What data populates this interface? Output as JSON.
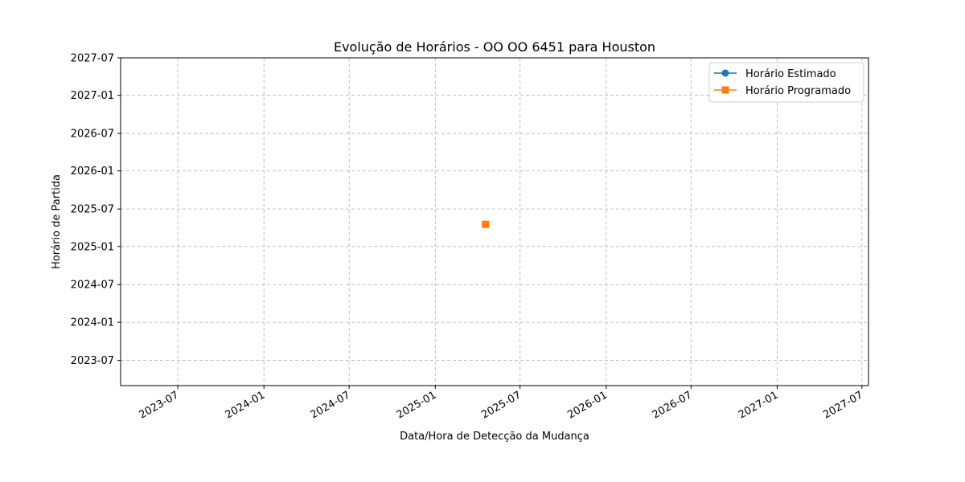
{
  "chart_data": {
    "type": "line",
    "title": "Evolução de Horários - OO OO 6451 para Houston",
    "xlabel": "Data/Hora de Detecção da Mudança",
    "ylabel": "Horário de Partida",
    "x_axis": "date",
    "y_axis": "date",
    "xlim": [
      "2023-03-01",
      "2027-07-15"
    ],
    "ylim": [
      "2023-03-01",
      "2027-07-01"
    ],
    "x_ticks": [
      "2023-07",
      "2024-01",
      "2024-07",
      "2025-01",
      "2025-07",
      "2026-01",
      "2026-07",
      "2027-01",
      "2027-07"
    ],
    "y_ticks": [
      "2023-07",
      "2024-01",
      "2024-07",
      "2025-01",
      "2025-07",
      "2026-01",
      "2026-07",
      "2027-01",
      "2027-07"
    ],
    "grid": true,
    "legend_position": "top-right",
    "series": [
      {
        "name": "Horário Estimado",
        "marker": "circle",
        "color": "#1f77b4",
        "points": [
          {
            "x": "2025-04-18",
            "y": "2025-04-18"
          }
        ]
      },
      {
        "name": "Horário Programado",
        "marker": "square",
        "color": "#ff7f0e",
        "points": [
          {
            "x": "2025-04-18",
            "y": "2025-04-18"
          }
        ]
      }
    ]
  }
}
